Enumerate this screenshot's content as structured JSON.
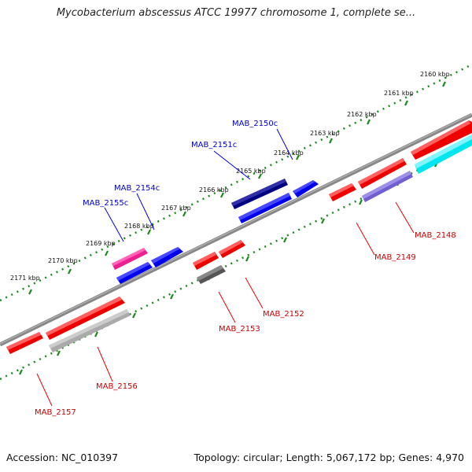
{
  "title": "Mycobacterium abscessus ATCC 19977 chromosome 1, complete se...",
  "footer": {
    "accession": "Accession: NC_010397",
    "summary": "Topology: circular; Length: 5,067,172 bp; Genes: 4,970"
  },
  "colors": {
    "forward_label": "#0000cc",
    "reverse_label": "#cc0000",
    "backbone": "#888888",
    "ticks": "#1a8a1a"
  },
  "scale_ticks": [
    "2160 kbp",
    "2161 kbp",
    "2162 kbp",
    "2163 kbp",
    "2164 kbp",
    "2165 kbp",
    "2166 kbp",
    "2167 kbp",
    "2168 kbp",
    "2169 kbp",
    "2170 kbp",
    "2171 kbp"
  ],
  "genes_forward": [
    {
      "label": "MAB_2150c",
      "color": "#000080"
    },
    {
      "label": "MAB_2151c",
      "color": "#0000ee"
    },
    {
      "label": "MAB_2154c",
      "color": "#ee2090"
    },
    {
      "label": "MAB_2155c",
      "color": "#0000ee"
    }
  ],
  "genes_reverse": [
    {
      "label": "MAB_2148",
      "color": "#6f5fd0"
    },
    {
      "label": "MAB_2149",
      "color": "#ee0000"
    },
    {
      "label": "MAB_2152",
      "color": "#ee0000"
    },
    {
      "label": "MAB_2153",
      "color": "#555555"
    },
    {
      "label": "MAB_2156",
      "color": "#aaaaaa"
    },
    {
      "label": "MAB_2157",
      "color": "#ee0000"
    }
  ]
}
